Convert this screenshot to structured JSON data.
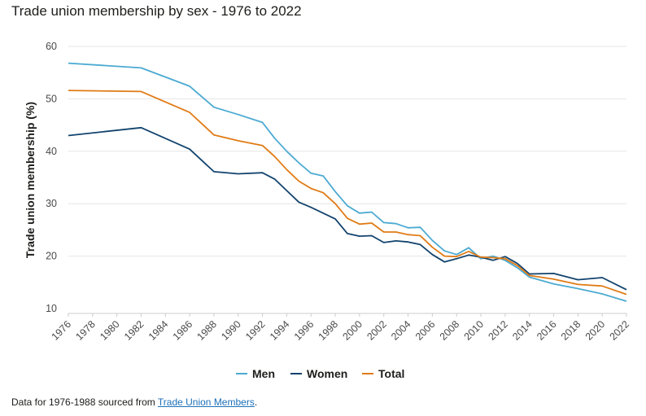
{
  "title": "Trade union membership by sex - 1976 to 2022",
  "footer": {
    "prefix": "Data for 1976-1988 sourced from ",
    "link_text": "Trade Union Members",
    "suffix": "."
  },
  "colors": {
    "Men": "#4baad2",
    "Women": "#12436d",
    "Total": "#e07b16",
    "grid": "#e6e6e6",
    "axis": "#cccccc"
  },
  "chart_data": {
    "type": "line",
    "title": "Trade union membership by sex - 1976 to 2022",
    "xlabel": "",
    "ylabel": "Trade union membership (%)",
    "xlim": [
      1976,
      2022
    ],
    "ylim": [
      10,
      60
    ],
    "yticks": [
      10,
      20,
      30,
      40,
      50,
      60
    ],
    "xticks": [
      "1976",
      "1978",
      "1980",
      "1982",
      "1984",
      "1986",
      "1988",
      "1990",
      "1992",
      "1994",
      "1996",
      "1998",
      "2000",
      "2002",
      "2004",
      "2006",
      "2008",
      "2010",
      "2012",
      "2014",
      "2016",
      "2018",
      "2020",
      "2022"
    ],
    "grid": true,
    "legend_position": "bottom",
    "series": [
      {
        "name": "Men",
        "points": [
          [
            1976,
            56.8
          ],
          [
            1982,
            55.9
          ],
          [
            1986,
            52.4
          ],
          [
            1988,
            48.4
          ],
          [
            1990,
            47.0
          ],
          [
            1992,
            45.5
          ],
          [
            1993,
            42.5
          ],
          [
            1994,
            40.0
          ],
          [
            1995,
            37.8
          ],
          [
            1996,
            35.8
          ],
          [
            1997,
            35.3
          ],
          [
            1998,
            32.3
          ],
          [
            1999,
            29.6
          ],
          [
            2000,
            28.2
          ],
          [
            2001,
            28.4
          ],
          [
            2002,
            26.4
          ],
          [
            2003,
            26.2
          ],
          [
            2004,
            25.4
          ],
          [
            2005,
            25.5
          ],
          [
            2006,
            23.0
          ],
          [
            2007,
            21.0
          ],
          [
            2008,
            20.3
          ],
          [
            2009,
            21.6
          ],
          [
            2010,
            19.5
          ],
          [
            2011,
            20.0
          ],
          [
            2012,
            19.2
          ],
          [
            2013,
            17.8
          ],
          [
            2014,
            16.0
          ],
          [
            2016,
            14.7
          ],
          [
            2018,
            13.8
          ],
          [
            2020,
            12.8
          ],
          [
            2022,
            11.4
          ]
        ]
      },
      {
        "name": "Women",
        "points": [
          [
            1976,
            43.0
          ],
          [
            1982,
            44.5
          ],
          [
            1986,
            40.4
          ],
          [
            1988,
            36.1
          ],
          [
            1990,
            35.7
          ],
          [
            1992,
            35.9
          ],
          [
            1993,
            34.7
          ],
          [
            1994,
            32.5
          ],
          [
            1995,
            30.3
          ],
          [
            1996,
            29.3
          ],
          [
            1997,
            28.2
          ],
          [
            1998,
            27.1
          ],
          [
            1999,
            24.3
          ],
          [
            2000,
            23.8
          ],
          [
            2001,
            23.9
          ],
          [
            2002,
            22.6
          ],
          [
            2003,
            22.9
          ],
          [
            2004,
            22.7
          ],
          [
            2005,
            22.2
          ],
          [
            2006,
            20.3
          ],
          [
            2007,
            18.9
          ],
          [
            2008,
            19.5
          ],
          [
            2009,
            20.2
          ],
          [
            2010,
            19.8
          ],
          [
            2011,
            19.2
          ],
          [
            2012,
            19.9
          ],
          [
            2013,
            18.6
          ],
          [
            2014,
            16.6
          ],
          [
            2016,
            16.7
          ],
          [
            2018,
            15.5
          ],
          [
            2020,
            15.9
          ],
          [
            2022,
            13.6
          ]
        ]
      },
      {
        "name": "Total",
        "points": [
          [
            1976,
            51.6
          ],
          [
            1982,
            51.4
          ],
          [
            1986,
            47.4
          ],
          [
            1988,
            43.1
          ],
          [
            1990,
            42.0
          ],
          [
            1992,
            41.1
          ],
          [
            1993,
            39.0
          ],
          [
            1994,
            36.5
          ],
          [
            1995,
            34.3
          ],
          [
            1996,
            32.9
          ],
          [
            1997,
            32.1
          ],
          [
            1998,
            30.0
          ],
          [
            1999,
            27.2
          ],
          [
            2000,
            26.1
          ],
          [
            2001,
            26.3
          ],
          [
            2002,
            24.6
          ],
          [
            2003,
            24.6
          ],
          [
            2004,
            24.1
          ],
          [
            2005,
            23.9
          ],
          [
            2006,
            21.7
          ],
          [
            2007,
            20.0
          ],
          [
            2008,
            19.9
          ],
          [
            2009,
            20.9
          ],
          [
            2010,
            19.8
          ],
          [
            2011,
            19.7
          ],
          [
            2012,
            19.5
          ],
          [
            2013,
            18.2
          ],
          [
            2014,
            16.3
          ],
          [
            2016,
            15.6
          ],
          [
            2018,
            14.6
          ],
          [
            2020,
            14.3
          ],
          [
            2022,
            12.7
          ]
        ]
      }
    ]
  }
}
